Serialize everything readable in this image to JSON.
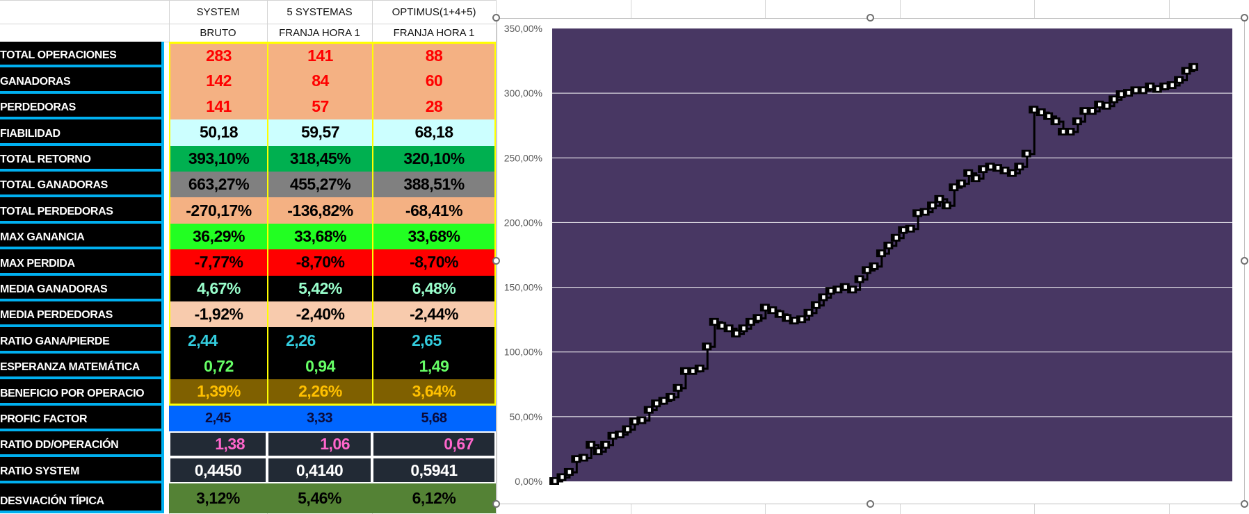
{
  "headers": {
    "row1": [
      "SYSTEM",
      "5 SYSTEMAS",
      "OPTIMUS(1+4+5)"
    ],
    "row2": [
      "BRUTO",
      "FRANJA HORA 1",
      "FRANJA HORA 1"
    ]
  },
  "rows": [
    {
      "label": "TOTAL OPERACIONES",
      "values": [
        "283",
        "141",
        "88"
      ],
      "bg": "#f4b183",
      "fg": "#ff0000"
    },
    {
      "label": "GANADORAS",
      "values": [
        "142",
        "84",
        "60"
      ],
      "bg": "#f4b183",
      "fg": "#ff0000"
    },
    {
      "label": "PERDEDORAS",
      "values": [
        "141",
        "57",
        "28"
      ],
      "bg": "#f4b183",
      "fg": "#ff0000"
    },
    {
      "label": "FIABILIDAD",
      "values": [
        "50,18",
        "59,57",
        "68,18"
      ],
      "bg": "#ccffff",
      "fg": "#000000"
    },
    {
      "label": "TOTAL RETORNO",
      "values": [
        "393,10%",
        "318,45%",
        "320,10%"
      ],
      "bg": "#00b050",
      "fg": "#000000"
    },
    {
      "label": "TOTAL GANADORAS",
      "values": [
        "663,27%",
        "455,27%",
        "388,51%"
      ],
      "bg": "#808080",
      "fg": "#000000"
    },
    {
      "label": "TOTAL PERDEDORAS",
      "values": [
        "-270,17%",
        "-136,82%",
        "-68,41%"
      ],
      "bg": "#f4b183",
      "fg": "#000000"
    },
    {
      "label": "MAX GANANCIA",
      "values": [
        "36,29%",
        "33,68%",
        "33,68%"
      ],
      "bg": "#22ff22",
      "fg": "#000000"
    },
    {
      "label": "MAX PERDIDA",
      "values": [
        "-7,77%",
        "-8,70%",
        "-8,70%"
      ],
      "bg": "#ff0000",
      "fg": "#000000"
    },
    {
      "label": "MEDIA GANADORAS",
      "values": [
        "4,67%",
        "5,42%",
        "6,48%"
      ],
      "bg": "#000000",
      "fg": "#99ffcc"
    },
    {
      "label": "MEDIA PERDEDORAS",
      "values": [
        "-1,92%",
        "-2,40%",
        "-2,44%"
      ],
      "bg": "#f8cbad",
      "fg": "#000000"
    },
    {
      "label": "RATIO GANA/PIERDE",
      "values": [
        "2,44",
        "2,26",
        "2,65"
      ],
      "bg": "#000000",
      "fg": "#33ccdd"
    },
    {
      "label": "ESPERANZA MATEMÁTICA",
      "values": [
        "0,72",
        "0,94",
        "1,49"
      ],
      "bg": "#000000",
      "fg": "#66ff66"
    },
    {
      "label": "BENEFICIO POR OPERACIO",
      "values": [
        "1,39%",
        "2,26%",
        "3,64%"
      ],
      "bg": "#7f6000",
      "fg": "#ffc000"
    },
    {
      "label": "PROFIC FACTOR",
      "values": [
        "2,45",
        "3,33",
        "5,68"
      ],
      "bg": "#0066ff",
      "fg": "#0a0a3a"
    },
    {
      "label": "RATIO DD/OPERACIÓN",
      "values": [
        "1,38",
        "1,06",
        "0,67"
      ],
      "bg": "#222a35",
      "fg": "#ff66cc"
    },
    {
      "label": "RATIO SYSTEM",
      "values": [
        "0,4450",
        "0,4140",
        "0,5941"
      ],
      "bg": "#222a35",
      "fg": "#ffffff"
    },
    {
      "label": "DESVIACIÓN TÍPICA",
      "values": [
        "3,12%",
        "5,46%",
        "6,12%"
      ],
      "bg": "#548235",
      "fg": "#000000"
    }
  ],
  "chart_data": {
    "type": "line",
    "title": "",
    "xlabel": "",
    "ylabel": "",
    "ylim": [
      0,
      350
    ],
    "yticks": [
      "0,00%",
      "50,00%",
      "100,00%",
      "150,00%",
      "200,00%",
      "250,00%",
      "300,00%",
      "350,00%"
    ],
    "grid": true,
    "background": "#483763",
    "line_color": "#000000",
    "marker": "white-square",
    "values": [
      0,
      3,
      7,
      17,
      18,
      28,
      23,
      28,
      35,
      36,
      40,
      46,
      47,
      55,
      60,
      62,
      65,
      72,
      85,
      85,
      87,
      104,
      123,
      120,
      118,
      114,
      118,
      123,
      126,
      134,
      132,
      129,
      126,
      124,
      125,
      130,
      136,
      142,
      147,
      148,
      150,
      148,
      156,
      163,
      166,
      176,
      182,
      188,
      194,
      195,
      207,
      208,
      213,
      218,
      213,
      227,
      230,
      238,
      234,
      241,
      243,
      242,
      240,
      238,
      243,
      253,
      287,
      285,
      282,
      278,
      270,
      270,
      278,
      286,
      286,
      291,
      290,
      295,
      299,
      300,
      302,
      302,
      305,
      303,
      305,
      306,
      310,
      317,
      320
    ]
  }
}
